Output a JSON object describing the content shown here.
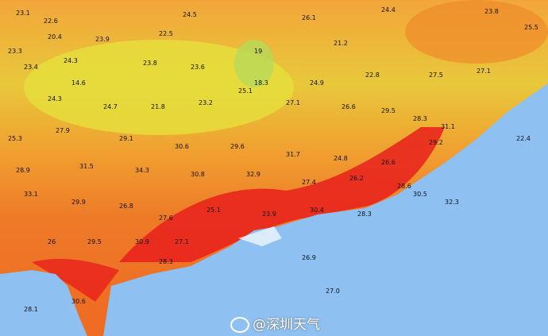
{
  "watermark": {
    "text": "@深圳天气",
    "icon": "weibo-logo-icon"
  },
  "colors": {
    "sea": "#8ec0f2",
    "hot": "#e8201c",
    "warm": "#f08a2a",
    "mild": "#f5b43a",
    "cool": "#e8e03a",
    "coolest": "#b8d85a"
  },
  "temperatures": [
    "23.1",
    "22.6",
    "24.5",
    "26.1",
    "24.4",
    "23.8",
    "23.3",
    "20.4",
    "23.9",
    "22.5",
    "19",
    "21.2",
    "25.5",
    "23.4",
    "24.3",
    "14.6",
    "23.8",
    "23.6",
    "18.3",
    "24.9",
    "22.8",
    "27.5",
    "27.1",
    "24.3",
    "24.7",
    "21.8",
    "23.2",
    "25.1",
    "27.1",
    "26.6",
    "29.5",
    "28.3",
    "31.1",
    "22.4",
    "25.3",
    "27.9",
    "29.1",
    "30.6",
    "29.6",
    "31.7",
    "24.8",
    "26.6",
    "29.2",
    "28.9",
    "31.5",
    "34.3",
    "30.8",
    "32.9",
    "27.4",
    "26.2",
    "28.6",
    "30.5",
    "32.3",
    "33.1",
    "29.9",
    "26.8",
    "27.6",
    "25.1",
    "23.9",
    "30.4",
    "28.3",
    "26",
    "29.5",
    "30.9",
    "27.1",
    "26.9",
    "28.1",
    "30.6",
    "28.3",
    "27.0"
  ]
}
